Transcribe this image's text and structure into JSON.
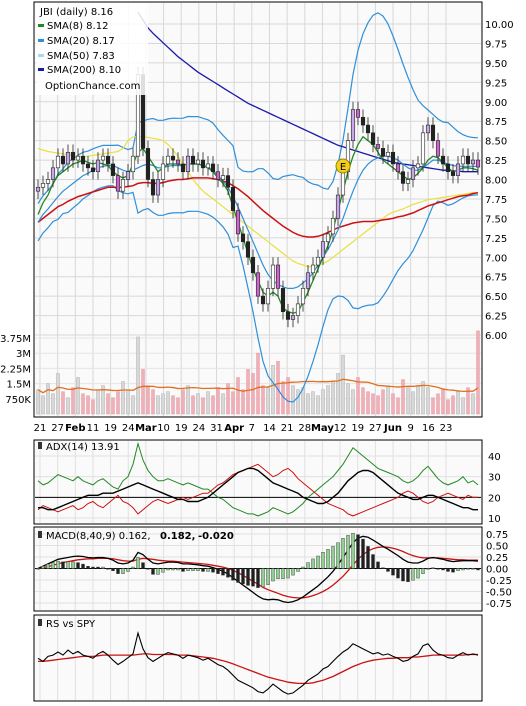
{
  "chart_data": {
    "type": "line",
    "title": "JBI (daily) 8.16",
    "source_label": "OptionChance.com",
    "colors": {
      "price_up": "#3a8a3a",
      "price_down": "#cc2222",
      "sma8": "#228822",
      "sma20": "#2f8fd8",
      "sma50": "#e8e040",
      "sma200": "#1a1aa8",
      "ema_red": "#cc1111",
      "volume": "#f0b0b8",
      "volume_avg": "#e07020"
    },
    "legend": [
      {
        "label": "SMA(8)",
        "value": "8.12",
        "color": "#228822"
      },
      {
        "label": "SMA(20)",
        "value": "8.17",
        "color": "#2f8fd8"
      },
      {
        "label": "SMA(50)",
        "value": "7.83",
        "color": "#a8d8f0"
      },
      {
        "label": "SMA(200)",
        "value": "8.10",
        "color": "#1a1aa8"
      }
    ],
    "price_axis": {
      "ticks": [
        "10.00",
        "9.75",
        "9.50",
        "9.25",
        "9.00",
        "8.75",
        "8.50",
        "8.25",
        "8.00",
        "7.75",
        "7.50",
        "7.25",
        "7.00",
        "6.75",
        "6.50",
        "6.25",
        "6.00"
      ],
      "ylim": [
        5.8,
        10.2
      ]
    },
    "volume_axis": {
      "ticks": [
        "3.75M",
        "3M",
        "2.25M",
        "1.5M",
        "750K"
      ]
    },
    "x_ticks": [
      {
        "label": "21",
        "bold": false
      },
      {
        "label": "27",
        "bold": false
      },
      {
        "label": "Feb",
        "bold": true
      },
      {
        "label": "11",
        "bold": false
      },
      {
        "label": "19",
        "bold": false
      },
      {
        "label": "24",
        "bold": false
      },
      {
        "label": "Mar",
        "bold": true
      },
      {
        "label": "10",
        "bold": false
      },
      {
        "label": "19",
        "bold": false
      },
      {
        "label": "24",
        "bold": false
      },
      {
        "label": "31",
        "bold": false
      },
      {
        "label": "Apr",
        "bold": true
      },
      {
        "label": "7",
        "bold": false
      },
      {
        "label": "14",
        "bold": false
      },
      {
        "label": "21",
        "bold": false
      },
      {
        "label": "28",
        "bold": false
      },
      {
        "label": "May",
        "bold": true
      },
      {
        "label": "12",
        "bold": false
      },
      {
        "label": "19",
        "bold": false
      },
      {
        "label": "27",
        "bold": false
      },
      {
        "label": "Jun",
        "bold": true
      },
      {
        "label": "9",
        "bold": false
      },
      {
        "label": "16",
        "bold": false
      },
      {
        "label": "23",
        "bold": false
      }
    ],
    "close": [
      7.9,
      7.95,
      8.0,
      8.15,
      8.3,
      8.2,
      8.35,
      8.25,
      8.3,
      8.2,
      8.15,
      8.1,
      8.25,
      8.3,
      8.2,
      8.05,
      7.85,
      8.0,
      8.1,
      8.3,
      9.35,
      8.4,
      8.0,
      7.8,
      8.0,
      8.2,
      8.3,
      8.25,
      8.2,
      8.1,
      8.3,
      8.2,
      8.25,
      8.15,
      8.2,
      8.1,
      8.0,
      8.05,
      7.9,
      7.6,
      7.3,
      7.2,
      7.0,
      6.8,
      6.5,
      6.4,
      6.6,
      6.9,
      6.6,
      6.3,
      6.2,
      6.25,
      6.4,
      6.6,
      6.8,
      6.9,
      7.0,
      7.2,
      7.3,
      7.5,
      7.8,
      8.1,
      8.5,
      8.9,
      8.8,
      8.7,
      8.6,
      8.45,
      8.4,
      8.3,
      8.35,
      8.2,
      8.1,
      7.95,
      8.0,
      8.15,
      8.2,
      8.6,
      8.7,
      8.5,
      8.3,
      8.2,
      8.1,
      8.05,
      8.2,
      8.3,
      8.2,
      8.25,
      8.16
    ],
    "sma8": [
      7.55,
      7.7,
      7.8,
      7.95,
      8.05,
      8.1,
      8.15,
      8.2,
      8.22,
      8.25,
      8.22,
      8.2,
      8.22,
      8.2,
      8.18,
      8.1,
      8.05,
      8.02,
      8.05,
      8.2,
      8.35,
      8.4,
      8.3,
      8.2,
      8.1,
      8.15,
      8.2,
      8.2,
      8.2,
      8.18,
      8.2,
      8.2,
      8.2,
      8.18,
      8.15,
      8.1,
      8.02,
      7.95,
      7.85,
      7.65,
      7.45,
      7.25,
      7.05,
      6.85,
      6.7,
      6.55,
      6.5,
      6.55,
      6.5,
      6.35,
      6.3,
      6.28,
      6.3,
      6.42,
      6.55,
      6.7,
      6.85,
      7.0,
      7.15,
      7.35,
      7.6,
      7.85,
      8.1,
      8.3,
      8.45,
      8.55,
      8.5,
      8.45,
      8.35,
      8.25,
      8.2,
      8.15,
      8.1,
      8.05,
      8.0,
      8.02,
      8.08,
      8.15,
      8.25,
      8.3,
      8.28,
      8.22,
      8.15,
      8.1,
      8.12,
      8.15,
      8.15,
      8.14,
      8.12
    ],
    "sma20": [
      7.45,
      7.55,
      7.62,
      7.7,
      7.78,
      7.85,
      7.9,
      7.95,
      8.0,
      8.05,
      8.08,
      8.12,
      8.15,
      8.17,
      8.18,
      8.18,
      8.15,
      8.12,
      8.1,
      8.12,
      8.15,
      8.18,
      8.2,
      8.18,
      8.15,
      8.15,
      8.17,
      8.18,
      8.18,
      8.18,
      8.2,
      8.2,
      8.2,
      8.18,
      8.16,
      8.12,
      8.05,
      7.98,
      7.9,
      7.78,
      7.65,
      7.5,
      7.35,
      7.2,
      7.05,
      6.9,
      6.78,
      6.7,
      6.65,
      6.62,
      6.6,
      6.6,
      6.62,
      6.67,
      6.72,
      6.8,
      6.9,
      7.0,
      7.1,
      7.22,
      7.35,
      7.5,
      7.68,
      7.85,
      8.0,
      8.12,
      8.2,
      8.25,
      8.28,
      8.3,
      8.3,
      8.28,
      8.25,
      8.2,
      8.15,
      8.12,
      8.12,
      8.15,
      8.2,
      8.25,
      8.25,
      8.22,
      8.2,
      8.18,
      8.17,
      8.17,
      8.17,
      8.17,
      8.17
    ],
    "sma50": [
      8.4,
      8.38,
      8.36,
      8.35,
      8.34,
      8.33,
      8.32,
      8.31,
      8.3,
      8.29,
      8.3,
      8.31,
      8.32,
      8.33,
      8.34,
      8.35,
      8.36,
      8.4,
      8.5,
      8.55,
      8.55,
      8.55,
      8.54,
      8.53,
      8.52,
      8.5,
      8.45,
      8.38,
      8.3,
      8.2,
      8.1,
      8.0,
      7.92,
      7.85,
      7.8,
      7.75,
      7.7,
      7.65,
      7.6,
      7.55,
      7.5,
      7.45,
      7.4,
      7.35,
      7.3,
      7.25,
      7.2,
      7.15,
      7.1,
      7.05,
      7.0,
      6.95,
      6.92,
      6.9,
      6.88,
      6.88,
      6.9,
      6.92,
      6.95,
      7.0,
      7.05,
      7.1,
      7.15,
      7.2,
      7.25,
      7.3,
      7.35,
      7.4,
      7.45,
      7.5,
      7.55,
      7.58,
      7.6,
      7.62,
      7.65,
      7.68,
      7.7,
      7.72,
      7.74,
      7.75,
      7.76,
      7.77,
      7.78,
      7.79,
      7.8,
      7.81,
      7.82,
      7.83,
      7.83
    ],
    "sma200": [
      null,
      null,
      null,
      null,
      null,
      null,
      null,
      null,
      null,
      null,
      null,
      null,
      null,
      null,
      null,
      null,
      null,
      null,
      null,
      null,
      10.15,
      10.05,
      9.95,
      9.88,
      9.82,
      9.76,
      9.7,
      9.64,
      9.58,
      9.53,
      9.48,
      9.43,
      9.38,
      9.34,
      9.3,
      9.26,
      9.22,
      9.18,
      9.14,
      9.1,
      9.06,
      9.02,
      8.98,
      8.95,
      8.92,
      8.89,
      8.86,
      8.83,
      8.8,
      8.77,
      8.74,
      8.71,
      8.68,
      8.65,
      8.62,
      8.59,
      8.56,
      8.53,
      8.5,
      8.47,
      8.44,
      8.42,
      8.4,
      8.38,
      8.36,
      8.34,
      8.32,
      8.3,
      8.28,
      8.26,
      8.24,
      8.22,
      8.21,
      8.2,
      8.19,
      8.18,
      8.17,
      8.16,
      8.15,
      8.14,
      8.13,
      8.12,
      8.12,
      8.11,
      8.11,
      8.1,
      8.1,
      8.1,
      8.1
    ],
    "ema_red": [
      7.45,
      7.5,
      7.55,
      7.6,
      7.65,
      7.68,
      7.72,
      7.75,
      7.78,
      7.8,
      7.82,
      7.84,
      7.86,
      7.88,
      7.9,
      7.9,
      7.9,
      7.9,
      7.91,
      7.92,
      7.95,
      7.96,
      7.96,
      7.95,
      7.95,
      7.96,
      7.98,
      7.99,
      8.0,
      8.0,
      8.01,
      8.02,
      8.02,
      8.02,
      8.02,
      8.01,
      8.0,
      7.98,
      7.96,
      7.92,
      7.88,
      7.83,
      7.78,
      7.72,
      7.66,
      7.6,
      7.55,
      7.5,
      7.45,
      7.4,
      7.36,
      7.32,
      7.29,
      7.27,
      7.26,
      7.26,
      7.27,
      7.29,
      7.32,
      7.35,
      7.38,
      7.4,
      7.42,
      7.44,
      7.45,
      7.46,
      7.46,
      7.46,
      7.47,
      7.48,
      7.49,
      7.5,
      7.52,
      7.53,
      7.55,
      7.57,
      7.6,
      7.63,
      7.66,
      7.68,
      7.7,
      7.72,
      7.74,
      7.76,
      7.78,
      7.79,
      7.8,
      7.82,
      7.83
    ],
    "volume_m": [
      1.2,
      0.9,
      1.5,
      1.0,
      2.0,
      1.1,
      0.8,
      1.3,
      1.8,
      1.0,
      0.9,
      0.7,
      1.2,
      1.4,
      1.0,
      0.8,
      1.1,
      1.6,
      1.2,
      0.9,
      3.8,
      2.2,
      1.4,
      1.2,
      0.9,
      1.0,
      1.1,
      0.9,
      0.8,
      1.2,
      1.4,
      0.9,
      1.0,
      0.8,
      1.1,
      0.9,
      1.3,
      1.0,
      1.5,
      1.1,
      1.8,
      1.2,
      2.2,
      2.0,
      3.0,
      1.4,
      1.3,
      2.4,
      2.6,
      1.6,
      1.8,
      1.4,
      1.2,
      1.3,
      1.0,
      1.1,
      0.9,
      1.2,
      1.4,
      1.6,
      2.0,
      2.9,
      1.5,
      1.2,
      1.8,
      1.3,
      1.1,
      1.0,
      0.9,
      1.2,
      1.4,
      1.0,
      0.8,
      1.7,
      1.3,
      1.1,
      1.4,
      1.6,
      1.3,
      0.8,
      1.0,
      1.2,
      0.7,
      0.9,
      1.1,
      0.8,
      1.3,
      1.0,
      4.1
    ],
    "adx": {
      "label": "ADX(14)",
      "value": "13.91",
      "ticks": [
        "40",
        "30",
        "20",
        "10"
      ],
      "ylim": [
        8,
        48
      ]
    },
    "adx_line": [
      15,
      15,
      14,
      14,
      15,
      16,
      17,
      18,
      19,
      20,
      21,
      21,
      21,
      22,
      22,
      22,
      23,
      24,
      25,
      26,
      27,
      26,
      25,
      24,
      23,
      22,
      21,
      20,
      19,
      19,
      18,
      18,
      18,
      19,
      20,
      22,
      24,
      26,
      28,
      30,
      32,
      33,
      34,
      34,
      33,
      31,
      29,
      27,
      26,
      25,
      24,
      23,
      22,
      20,
      19,
      18,
      17,
      17,
      18,
      20,
      22,
      25,
      28,
      30,
      32,
      33,
      33,
      32,
      30,
      28,
      26,
      24,
      22,
      21,
      20,
      19,
      19,
      20,
      21,
      21,
      20,
      19,
      18,
      17,
      16,
      15,
      15,
      14,
      14
    ],
    "pdi": [
      28,
      26,
      27,
      29,
      31,
      30,
      29,
      28,
      30,
      28,
      27,
      26,
      28,
      29,
      27,
      25,
      24,
      28,
      30,
      36,
      46,
      38,
      33,
      30,
      28,
      28,
      29,
      28,
      27,
      26,
      27,
      26,
      25,
      24,
      24,
      22,
      20,
      19,
      17,
      15,
      14,
      13,
      12,
      12,
      11,
      12,
      13,
      15,
      14,
      13,
      12,
      13,
      15,
      17,
      20,
      22,
      24,
      26,
      28,
      30,
      33,
      36,
      40,
      44,
      42,
      40,
      38,
      36,
      34,
      33,
      32,
      31,
      30,
      28,
      27,
      28,
      30,
      33,
      35,
      32,
      29,
      27,
      26,
      27,
      28,
      30,
      27,
      28,
      26
    ],
    "mdi": [
      14,
      16,
      15,
      14,
      13,
      14,
      15,
      16,
      14,
      15,
      17,
      18,
      16,
      15,
      17,
      19,
      21,
      18,
      17,
      15,
      12,
      14,
      16,
      18,
      19,
      18,
      17,
      18,
      19,
      20,
      19,
      20,
      21,
      22,
      22,
      24,
      26,
      27,
      29,
      31,
      32,
      33,
      34,
      35,
      36,
      34,
      32,
      30,
      31,
      33,
      34,
      32,
      29,
      27,
      25,
      23,
      21,
      19,
      17,
      16,
      15,
      14,
      12,
      11,
      12,
      13,
      14,
      15,
      16,
      17,
      18,
      19,
      20,
      22,
      23,
      22,
      20,
      18,
      17,
      18,
      20,
      21,
      22,
      21,
      20,
      19,
      21,
      20,
      20
    ],
    "macd": {
      "label": "MACD(8,40,9)",
      "value": "0.162,",
      "signal": "0.182,",
      "hist": "-0.020",
      "ticks": [
        "0.75",
        "0.50",
        "0.25",
        "0.00",
        "-0.25",
        "-0.50",
        "-0.75"
      ],
      "ylim": [
        -0.92,
        0.92
      ]
    },
    "macd_line": [
      0.0,
      0.05,
      0.1,
      0.15,
      0.2,
      0.22,
      0.24,
      0.26,
      0.27,
      0.26,
      0.24,
      0.23,
      0.24,
      0.24,
      0.22,
      0.18,
      0.12,
      0.1,
      0.12,
      0.18,
      0.35,
      0.3,
      0.2,
      0.12,
      0.1,
      0.12,
      0.14,
      0.14,
      0.13,
      0.1,
      0.1,
      0.09,
      0.08,
      0.06,
      0.05,
      0.02,
      -0.02,
      -0.06,
      -0.12,
      -0.2,
      -0.28,
      -0.36,
      -0.44,
      -0.52,
      -0.6,
      -0.66,
      -0.68,
      -0.67,
      -0.68,
      -0.72,
      -0.74,
      -0.72,
      -0.68,
      -0.62,
      -0.54,
      -0.46,
      -0.38,
      -0.28,
      -0.18,
      -0.06,
      0.08,
      0.24,
      0.4,
      0.56,
      0.66,
      0.7,
      0.68,
      0.62,
      0.55,
      0.48,
      0.42,
      0.35,
      0.28,
      0.2,
      0.14,
      0.12,
      0.12,
      0.16,
      0.22,
      0.24,
      0.22,
      0.2,
      0.17,
      0.15,
      0.16,
      0.17,
      0.17,
      0.17,
      0.16
    ],
    "macd_signal": [
      0.0,
      0.02,
      0.04,
      0.07,
      0.1,
      0.13,
      0.15,
      0.17,
      0.19,
      0.2,
      0.21,
      0.21,
      0.22,
      0.22,
      0.22,
      0.21,
      0.19,
      0.17,
      0.16,
      0.16,
      0.2,
      0.22,
      0.21,
      0.2,
      0.18,
      0.17,
      0.16,
      0.16,
      0.15,
      0.14,
      0.13,
      0.12,
      0.11,
      0.1,
      0.09,
      0.07,
      0.05,
      0.03,
      0.0,
      -0.04,
      -0.09,
      -0.15,
      -0.21,
      -0.28,
      -0.34,
      -0.41,
      -0.46,
      -0.5,
      -0.54,
      -0.58,
      -0.61,
      -0.63,
      -0.64,
      -0.64,
      -0.62,
      -0.59,
      -0.55,
      -0.5,
      -0.44,
      -0.36,
      -0.27,
      -0.17,
      -0.05,
      0.08,
      0.2,
      0.3,
      0.38,
      0.43,
      0.46,
      0.47,
      0.46,
      0.44,
      0.41,
      0.37,
      0.32,
      0.28,
      0.25,
      0.23,
      0.23,
      0.23,
      0.23,
      0.22,
      0.21,
      0.2,
      0.19,
      0.19,
      0.18,
      0.18,
      0.18
    ],
    "rs": {
      "label": "RS vs SPY"
    },
    "rs_line": [
      0.55,
      0.5,
      0.58,
      0.6,
      0.65,
      0.6,
      0.68,
      0.62,
      0.66,
      0.6,
      0.58,
      0.55,
      0.62,
      0.66,
      0.6,
      0.52,
      0.45,
      0.5,
      0.56,
      0.62,
      0.95,
      0.7,
      0.56,
      0.5,
      0.55,
      0.6,
      0.64,
      0.62,
      0.6,
      0.55,
      0.6,
      0.58,
      0.56,
      0.52,
      0.55,
      0.5,
      0.45,
      0.42,
      0.36,
      0.28,
      0.2,
      0.16,
      0.12,
      0.08,
      0.02,
      0.0,
      0.06,
      0.14,
      0.08,
      0.02,
      -0.02,
      0.0,
      0.06,
      0.12,
      0.2,
      0.25,
      0.3,
      0.38,
      0.42,
      0.5,
      0.58,
      0.65,
      0.7,
      0.78,
      0.74,
      0.7,
      0.66,
      0.62,
      0.64,
      0.6,
      0.62,
      0.58,
      0.55,
      0.5,
      0.52,
      0.58,
      0.62,
      0.75,
      0.78,
      0.68,
      0.62,
      0.6,
      0.56,
      0.55,
      0.6,
      0.64,
      0.6,
      0.62,
      0.6
    ],
    "rs_avg": [
      0.5,
      0.5,
      0.51,
      0.52,
      0.53,
      0.54,
      0.55,
      0.56,
      0.57,
      0.58,
      0.58,
      0.58,
      0.59,
      0.6,
      0.6,
      0.6,
      0.6,
      0.6,
      0.6,
      0.6,
      0.61,
      0.62,
      0.62,
      0.61,
      0.61,
      0.61,
      0.61,
      0.61,
      0.6,
      0.6,
      0.6,
      0.59,
      0.58,
      0.57,
      0.56,
      0.55,
      0.53,
      0.51,
      0.49,
      0.46,
      0.43,
      0.4,
      0.37,
      0.34,
      0.31,
      0.28,
      0.25,
      0.23,
      0.21,
      0.19,
      0.17,
      0.16,
      0.15,
      0.15,
      0.15,
      0.16,
      0.18,
      0.2,
      0.23,
      0.26,
      0.3,
      0.34,
      0.38,
      0.42,
      0.45,
      0.48,
      0.5,
      0.52,
      0.53,
      0.54,
      0.55,
      0.55,
      0.56,
      0.56,
      0.56,
      0.57,
      0.57,
      0.58,
      0.59,
      0.6,
      0.6,
      0.6,
      0.6,
      0.6,
      0.6,
      0.6,
      0.61,
      0.61,
      0.61
    ]
  }
}
